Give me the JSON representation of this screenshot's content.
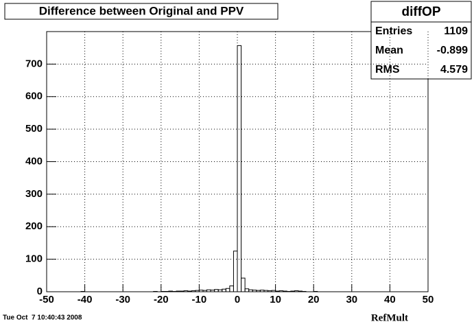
{
  "chart_data": {
    "type": "histogram",
    "title": "Difference between Original and PPV",
    "x_label": "RefMult",
    "timestamp": "Tue Oct  7 10:40:43 2008",
    "color": "#000000",
    "grid": true,
    "bins": [
      -50,
      -49,
      -48,
      -47,
      -46,
      -45,
      -44,
      -43,
      -42,
      -41,
      -40,
      -39,
      -38,
      -37,
      -36,
      -35,
      -34,
      -33,
      -32,
      -31,
      -30,
      -29,
      -28,
      -27,
      -26,
      -25,
      -24,
      -23,
      -22,
      -21,
      -20,
      -19,
      -18,
      -17,
      -16,
      -15,
      -14,
      -13,
      -12,
      -11,
      -10,
      -9,
      -8,
      -7,
      -6,
      -5,
      -4,
      -3,
      -2,
      -1,
      0,
      1,
      2,
      3,
      4,
      5,
      6,
      7,
      8,
      9,
      10,
      11,
      12,
      13,
      14,
      15,
      16,
      17,
      18,
      19,
      20,
      21,
      22,
      23,
      24,
      25,
      26,
      27,
      28,
      29,
      30,
      31,
      32,
      33,
      34,
      35,
      36,
      37,
      38,
      39,
      40,
      41,
      42,
      43,
      44,
      45,
      46,
      47,
      48,
      49,
      50
    ],
    "values": [
      0,
      0,
      0,
      0,
      0,
      0,
      0,
      0,
      0,
      1,
      0,
      0,
      0,
      0,
      0,
      0,
      0,
      0,
      0,
      0,
      0,
      0,
      0,
      0,
      0,
      0,
      0,
      0,
      1,
      0,
      1,
      1,
      2,
      1,
      2,
      2,
      3,
      2,
      3,
      4,
      5,
      4,
      6,
      5,
      7,
      6,
      8,
      10,
      18,
      125,
      757,
      42,
      9,
      6,
      5,
      4,
      5,
      4,
      3,
      4,
      2,
      3,
      2,
      1,
      2,
      3,
      2,
      1,
      0,
      0,
      1,
      0,
      0,
      0,
      0,
      0,
      0,
      0,
      0,
      0,
      0,
      0,
      0,
      0,
      0,
      0,
      0,
      0,
      0,
      0,
      0,
      0,
      0,
      0,
      0,
      0,
      0,
      0,
      0,
      0
    ],
    "xlim": [
      -50,
      50
    ],
    "xticks": [
      -50,
      -40,
      -30,
      -20,
      -10,
      0,
      10,
      20,
      30,
      40,
      50
    ],
    "ylim": [
      0,
      800
    ],
    "yticks": [
      0,
      100,
      200,
      300,
      400,
      500,
      600,
      700
    ],
    "stats": {
      "title": "diffOP",
      "rows": [
        {
          "label": "Entries",
          "value": 1109
        },
        {
          "label": "Mean",
          "value": -0.899
        },
        {
          "label": "RMS",
          "value": 4.579
        }
      ]
    }
  }
}
